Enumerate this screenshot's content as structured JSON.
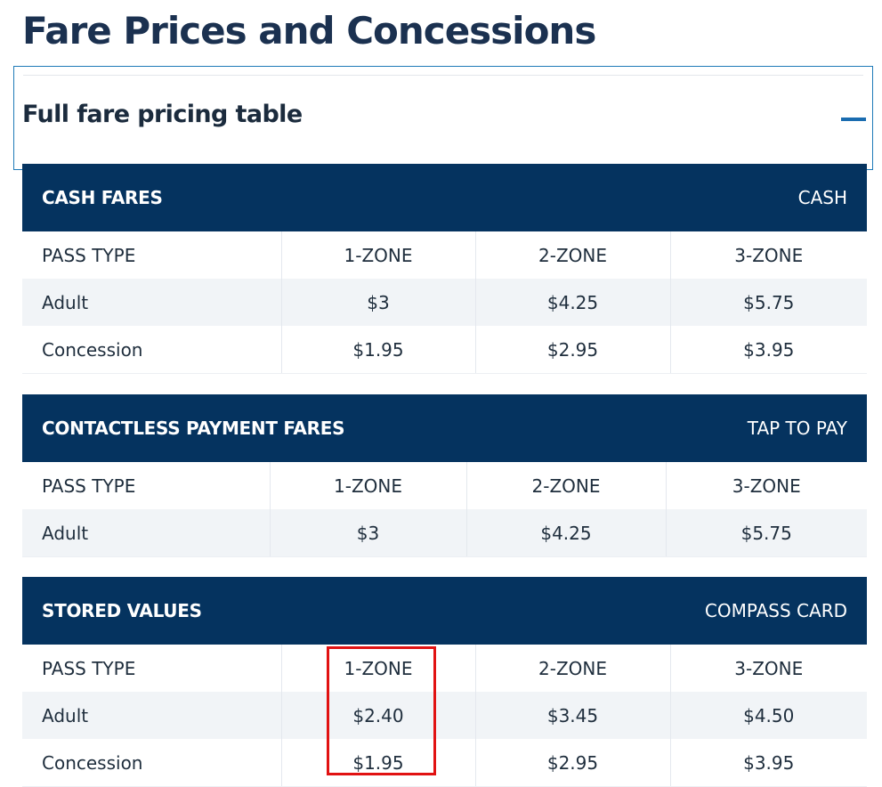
{
  "page": {
    "title": "Fare Prices and Concessions"
  },
  "accordion": {
    "title": "Full fare pricing table",
    "icon": "minus-icon"
  },
  "tables": {
    "cash": {
      "title": "CASH FARES",
      "tag": "CASH",
      "headers": [
        "PASS TYPE",
        "1-ZONE",
        "2-ZONE",
        "3-ZONE"
      ],
      "rows": [
        [
          "Adult",
          "$3",
          "$4.25",
          "$5.75"
        ],
        [
          "Concession",
          "$1.95",
          "$2.95",
          "$3.95"
        ]
      ]
    },
    "contactless": {
      "title": "CONTACTLESS PAYMENT FARES",
      "tag": "TAP TO PAY",
      "headers": [
        "PASS TYPE",
        "1-ZONE",
        "2-ZONE",
        "3-ZONE"
      ],
      "rows": [
        [
          "Adult",
          "$3",
          "$4.25",
          "$5.75"
        ]
      ]
    },
    "stored": {
      "title": "STORED VALUES",
      "tag": "COMPASS CARD",
      "headers": [
        "PASS TYPE",
        "1-ZONE",
        "2-ZONE",
        "3-ZONE"
      ],
      "rows": [
        [
          "Adult",
          "$2.40",
          "$3.45",
          "$4.50"
        ],
        [
          "Concession",
          "$1.95",
          "$2.95",
          "$3.95"
        ]
      ]
    }
  },
  "colors": {
    "band": "#05335f",
    "title": "#1b3150",
    "accent": "#1a6cb0",
    "highlight": "#e11212",
    "row_alt": "#f1f4f7"
  }
}
